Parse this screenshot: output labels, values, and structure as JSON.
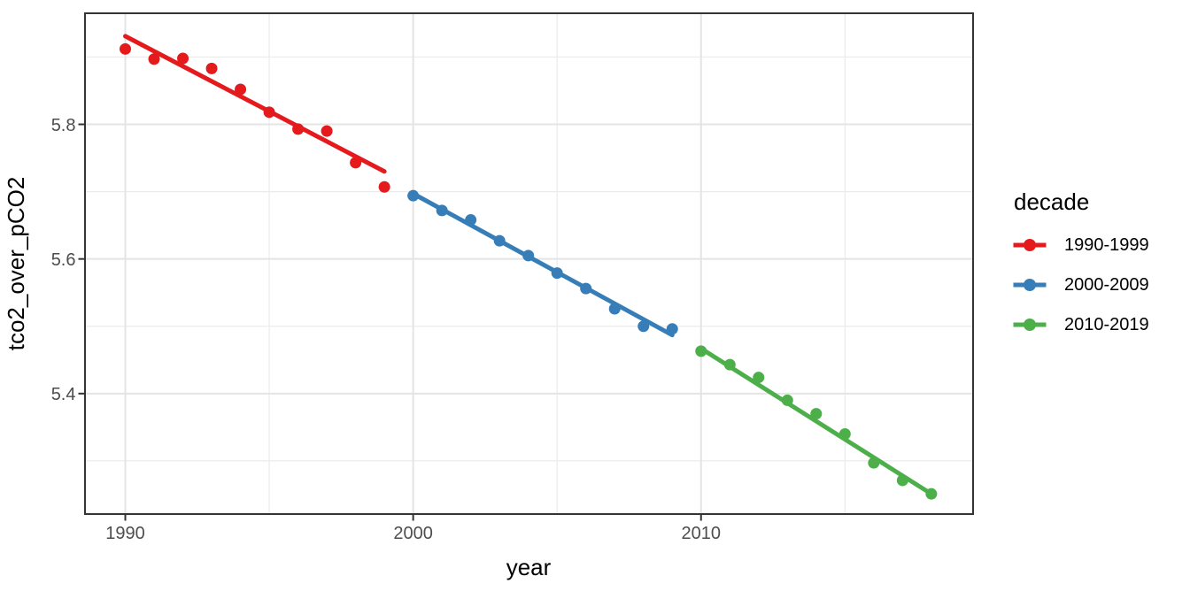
{
  "chart_data": {
    "type": "scatter",
    "title": "",
    "xlabel": "year",
    "ylabel": "tco2_over_pCO2",
    "xlim": [
      1988.6,
      2019.45
    ],
    "ylim": [
      5.221,
      5.965
    ],
    "grid": true,
    "legend": {
      "title": "decade",
      "position": "right"
    },
    "x_major_ticks": {
      "values": [
        1990,
        2000,
        2010
      ],
      "labels": [
        "1990",
        "2000",
        "2010"
      ]
    },
    "y_major_ticks": {
      "values": [
        5.8,
        5.6,
        5.4
      ],
      "labels": [
        "5.8",
        "5.6",
        "5.4"
      ]
    },
    "x_minor_gridlines": [
      1995,
      2005,
      2015
    ],
    "y_minor_gridlines": [
      5.9,
      5.7,
      5.5,
      5.3
    ],
    "style": {
      "panel_background": "#ffffff",
      "panel_border_color": "#343434",
      "gridline_major_color": "#e4e4e4",
      "gridline_minor_color": "#ebebeb",
      "tick_mark_color": "#333333",
      "tick_label_color": "#4d4d4d",
      "axis_title_color": "#000000"
    },
    "series": [
      {
        "name": "1990-1999",
        "color": "#E41A1C",
        "x": [
          1990,
          1991,
          1992,
          1993,
          1994,
          1995,
          1996,
          1997,
          1998,
          1999
        ],
        "y": [
          5.912,
          5.897,
          5.898,
          5.883,
          5.852,
          5.818,
          5.793,
          5.79,
          5.743,
          5.707
        ],
        "trend_line": {
          "x1": 1990,
          "y1": 5.931,
          "x2": 1999,
          "y2": 5.73
        }
      },
      {
        "name": "2000-2009",
        "color": "#377EB8",
        "x": [
          2000,
          2001,
          2002,
          2003,
          2004,
          2005,
          2006,
          2007,
          2008,
          2009
        ],
        "y": [
          5.694,
          5.672,
          5.658,
          5.627,
          5.605,
          5.579,
          5.556,
          5.526,
          5.5,
          5.496
        ],
        "trend_line": {
          "x1": 2000,
          "y1": 5.697,
          "x2": 2009,
          "y2": 5.487
        }
      },
      {
        "name": "2010-2019",
        "color": "#4DAF4A",
        "x": [
          2010,
          2011,
          2012,
          2013,
          2014,
          2015,
          2016,
          2017,
          2018
        ],
        "y": [
          5.463,
          5.443,
          5.424,
          5.39,
          5.37,
          5.34,
          5.297,
          5.271,
          5.251
        ],
        "trend_line": {
          "x1": 2010,
          "y1": 5.467,
          "x2": 2018,
          "y2": 5.251
        }
      }
    ]
  }
}
